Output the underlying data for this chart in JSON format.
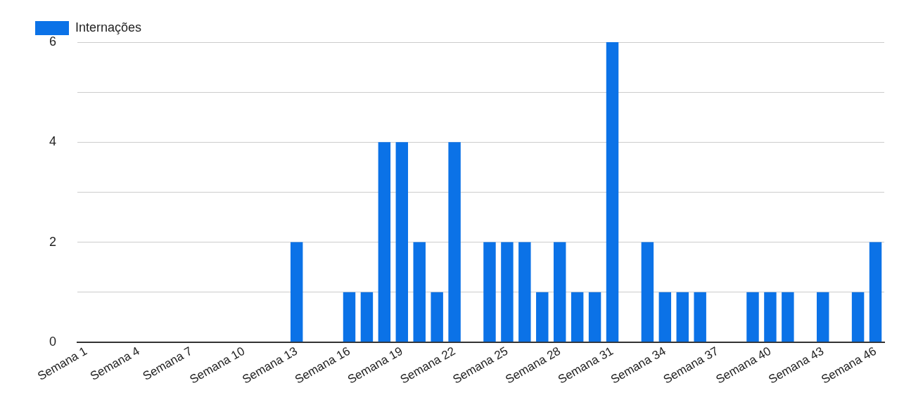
{
  "chart_data": {
    "type": "bar",
    "categories": [
      "Semana 1",
      null,
      null,
      "Semana 4",
      null,
      null,
      "Semana 7",
      null,
      null,
      "Semana 10",
      null,
      null,
      "Semana 13",
      null,
      null,
      "Semana 16",
      null,
      null,
      "Semana 19",
      null,
      null,
      "Semana 22",
      null,
      null,
      "Semana 25",
      null,
      null,
      "Semana 28",
      null,
      null,
      "Semana 31",
      null,
      null,
      "Semana 34",
      null,
      null,
      "Semana 37",
      null,
      null,
      "Semana 40",
      null,
      null,
      "Semana 43",
      null,
      null,
      "Semana 46"
    ],
    "series": [
      {
        "name": "Internações",
        "color": "#0b72e7",
        "values": [
          0,
          0,
          0,
          0,
          0,
          0,
          0,
          0,
          0,
          0,
          0,
          0,
          2,
          0,
          0,
          1,
          1,
          4,
          4,
          2,
          1,
          4,
          0,
          2,
          2,
          2,
          1,
          2,
          1,
          1,
          6,
          0,
          2,
          1,
          1,
          1,
          0,
          0,
          1,
          1,
          1,
          0,
          1,
          0,
          1,
          2
        ]
      }
    ],
    "ylim": [
      0,
      6
    ],
    "yticks": [
      0,
      {
        "value": 1,
        "label": null
      },
      2,
      {
        "value": 3,
        "label": null
      },
      4,
      {
        "value": 5,
        "label": null
      },
      6
    ],
    "grid": "y",
    "legend": "top left"
  }
}
